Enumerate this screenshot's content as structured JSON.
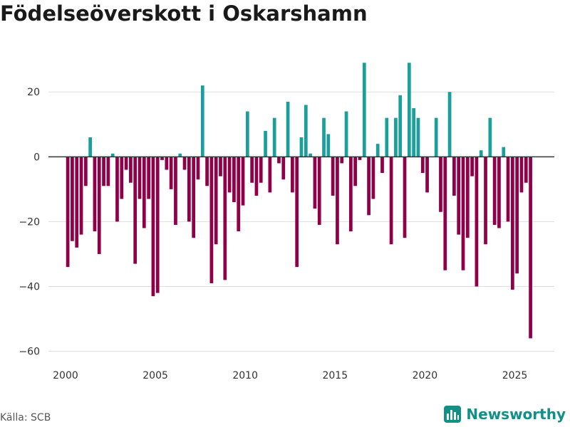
{
  "chart_data": {
    "type": "bar",
    "title": "Födelseöverskott i Oskarshamn",
    "source": "Källa: SCB",
    "brand": "Newsworthy",
    "xlabel": "",
    "ylabel": "",
    "xlim": [
      1999.05,
      2027.2
    ],
    "ylim": [
      -62.5,
      33
    ],
    "x_ticks": [
      2000,
      2005,
      2010,
      2015,
      2020,
      2025
    ],
    "y_ticks": [
      -60,
      -40,
      -20,
      0,
      20
    ],
    "grid": true,
    "colors": {
      "positive": "#1a9f9a",
      "negative": "#900048",
      "zero_line": "#333333",
      "grid": "#dddddd"
    },
    "bar_width_months": 0.75,
    "start_year": 2000,
    "start_month": 1,
    "values": [
      -34,
      -26,
      -28,
      -24,
      -9,
      6,
      -23,
      -30,
      -9,
      -9,
      1,
      -20,
      -13,
      -4,
      -8,
      -33,
      -13,
      -22,
      -13,
      -43,
      -42,
      -1,
      -4,
      -10,
      -21,
      1,
      -4,
      -20,
      -25,
      -7,
      22,
      -9,
      -39,
      -27,
      -6,
      -38,
      -11,
      -14,
      -23,
      -15,
      14,
      -8,
      -12,
      -8,
      8,
      -11,
      12,
      -2,
      -7,
      17,
      -11,
      -34,
      6,
      16,
      1,
      -16,
      -21,
      12,
      7,
      -12,
      -27,
      -2,
      14,
      -23,
      -9,
      -1,
      29,
      -18,
      -13,
      4,
      -5,
      12,
      -27,
      12,
      19,
      -25,
      29,
      15,
      12,
      -5,
      -11,
      0,
      12,
      -17,
      -35,
      20,
      -12,
      -24,
      -35,
      -25,
      -6,
      -40,
      2,
      -27,
      12,
      -21,
      -22,
      3,
      -20,
      -41,
      -36,
      -11,
      -8,
      -56
    ]
  }
}
